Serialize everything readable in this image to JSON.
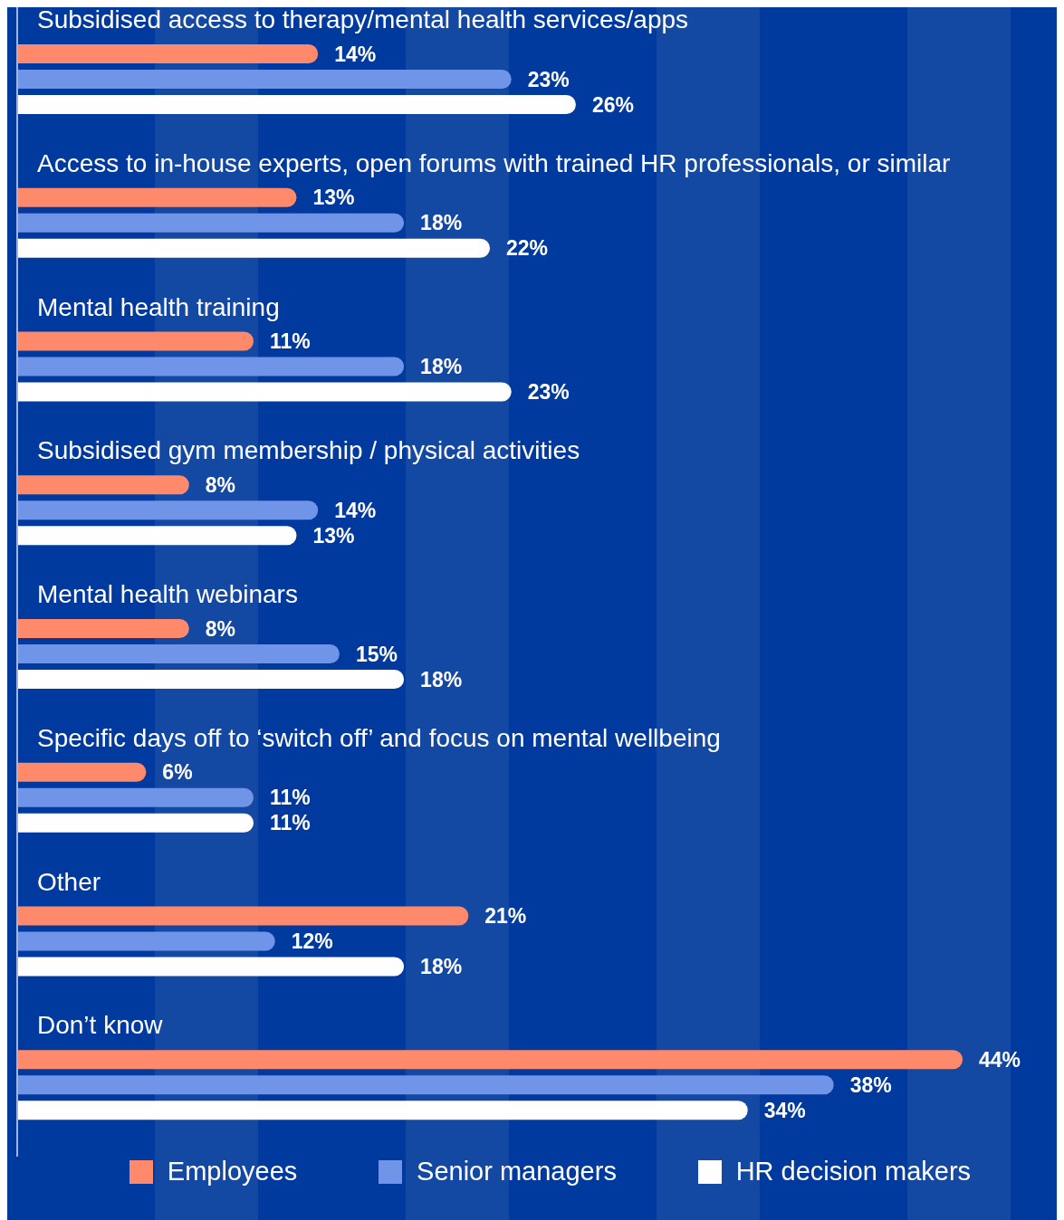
{
  "chart_data": {
    "type": "bar",
    "orientation": "horizontal",
    "categories": [
      "Subsidised access to therapy/mental health services/apps",
      "Access to in-house experts, open forums with trained HR professionals, or similar",
      "Mental health training",
      "Subsidised gym membership / physical activities",
      "Mental health webinars",
      "Specific days off to ‘switch off’ and focus on mental wellbeing",
      "Other",
      "Don’t know"
    ],
    "series": [
      {
        "name": "Employees",
        "color": "#ff8a6b",
        "values": [
          14,
          13,
          11,
          8,
          8,
          6,
          21,
          44
        ],
        "value_labels": [
          "14%",
          "13%",
          "11%",
          "8%",
          "8%",
          "6%",
          "21%",
          "44%"
        ]
      },
      {
        "name": "Senior managers",
        "color": "#7094e8",
        "values": [
          23,
          18,
          18,
          14,
          15,
          11,
          12,
          38
        ],
        "value_labels": [
          "23%",
          "18%",
          "18%",
          "14%",
          "15%",
          "11%",
          "12%",
          "38%"
        ]
      },
      {
        "name": "HR decision makers",
        "color": "#ffffff",
        "values": [
          26,
          22,
          23,
          13,
          18,
          11,
          18,
          34
        ],
        "value_labels": [
          "26%",
          "22%",
          "23%",
          "13%",
          "18%",
          "11%",
          "18%",
          "34%"
        ]
      }
    ],
    "tick_labels": false,
    "legend": "bottom"
  }
}
